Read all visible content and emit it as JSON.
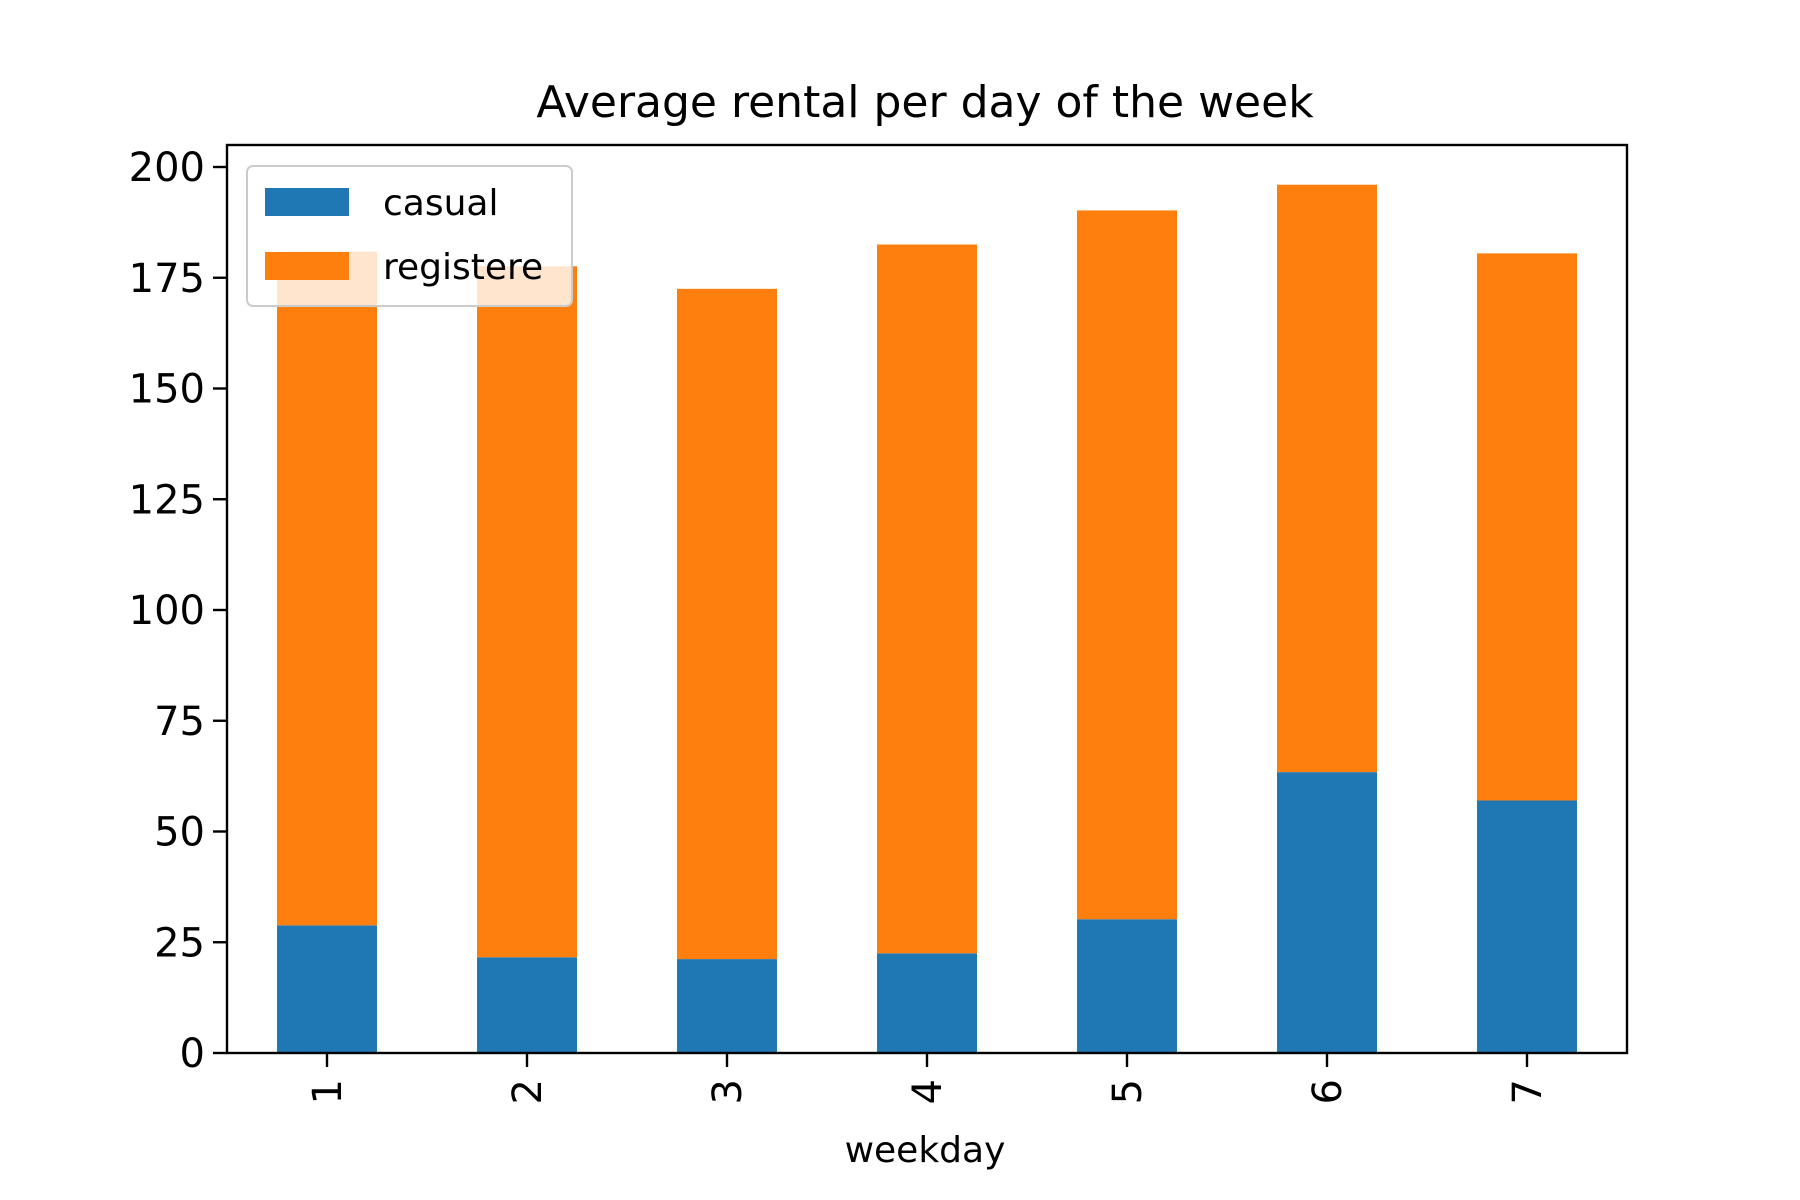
{
  "chart_data": {
    "type": "bar",
    "stacked": true,
    "title": "Average rental per day of the week",
    "xlabel": "weekday",
    "ylabel": "",
    "categories": [
      "1",
      "2",
      "3",
      "4",
      "5",
      "6",
      "7"
    ],
    "series": [
      {
        "name": "casual",
        "color": "#1f77b4",
        "values": [
          28.8,
          21.6,
          21.2,
          22.5,
          30.2,
          63.4,
          57.0
        ]
      },
      {
        "name": "registere",
        "color": "#ff7f0e",
        "values": [
          152.1,
          156.0,
          151.3,
          160.0,
          160.0,
          132.6,
          123.5
        ]
      }
    ],
    "ylim": [
      0,
      200
    ],
    "yticks": [
      0,
      25,
      50,
      75,
      100,
      125,
      150,
      175,
      200
    ],
    "legend": "top-left",
    "grid": false
  }
}
